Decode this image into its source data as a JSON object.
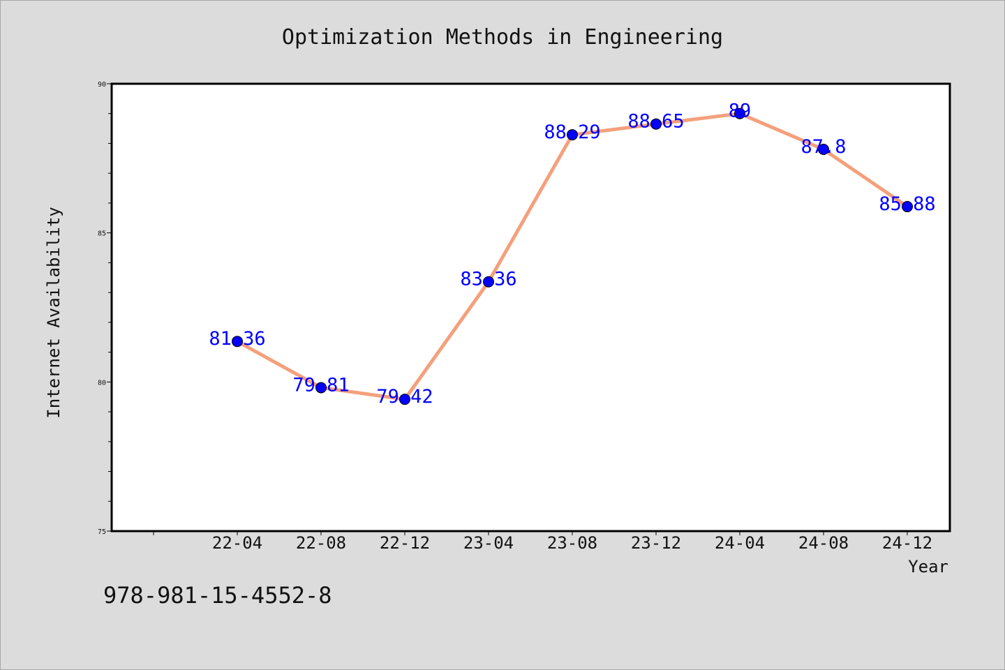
{
  "chart_data": {
    "type": "line",
    "title": "Optimization Methods in Engineering",
    "xlabel": "Year",
    "ylabel": "Internet Availability",
    "categories": [
      "22-04",
      "22-08",
      "22-12",
      "23-04",
      "23-08",
      "23-12",
      "24-04",
      "24-08",
      "24-12"
    ],
    "series": [
      {
        "values": [
          81.36,
          79.81,
          79.42,
          83.36,
          88.29,
          88.65,
          89,
          87.8,
          85.88
        ],
        "labels": [
          "81.36",
          "79.81",
          "79.42",
          "83.36",
          "88.29",
          "88.65",
          "89",
          "87.8",
          "85.88"
        ],
        "line_color": "#f4a07c",
        "marker_color": "#0000ff"
      }
    ],
    "ylim": [
      75,
      90
    ],
    "yticks": [
      "75",
      "80",
      "85",
      "90"
    ],
    "grid": false,
    "legend": "none"
  },
  "footer": {
    "text": "978-981-15-4552-8"
  },
  "colors": {
    "background": "#dcdcdc",
    "plot_bg": "#ffffff",
    "label": "#0000ff"
  }
}
